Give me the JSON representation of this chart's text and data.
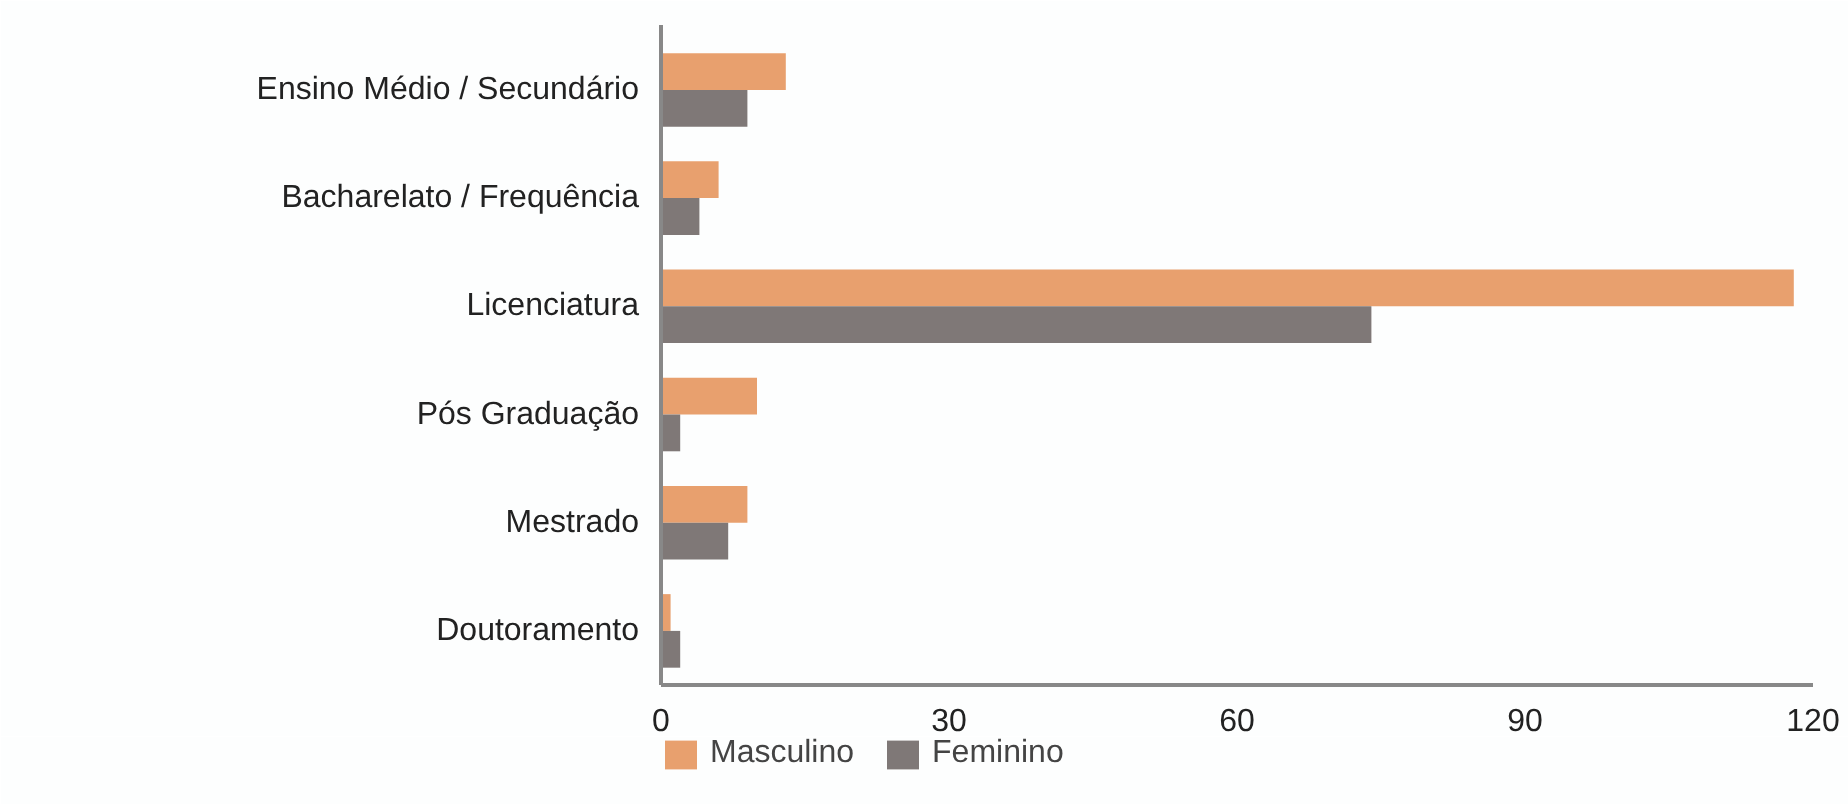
{
  "chart_data": {
    "type": "bar",
    "orientation": "horizontal",
    "categories": [
      "Ensino Médio / Secundário",
      "Bacharelato / Frequência",
      "Licenciatura",
      "Pós Graduação",
      "Mestrado",
      "Doutoramento"
    ],
    "series": [
      {
        "name": "Masculino",
        "color": "#e8a06e",
        "values": [
          13,
          6,
          118,
          10,
          9,
          1
        ]
      },
      {
        "name": "Feminino",
        "color": "#7f7877",
        "values": [
          9,
          4,
          74,
          2,
          7,
          2
        ]
      }
    ],
    "xlim": [
      0,
      120
    ],
    "xticks": [
      0,
      30,
      60,
      90,
      120
    ],
    "grid": false,
    "legend": "bottom"
  }
}
